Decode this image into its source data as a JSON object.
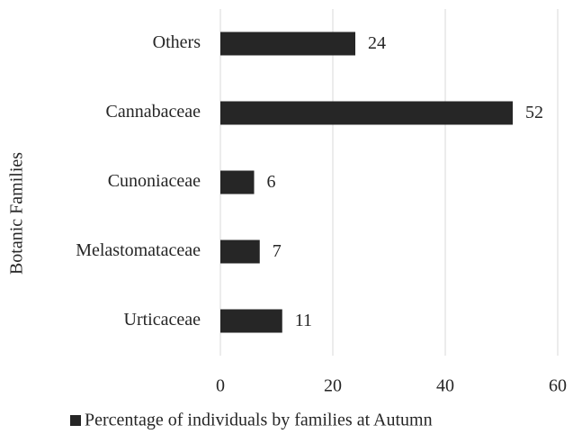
{
  "chart_data": {
    "type": "bar",
    "orientation": "horizontal",
    "ylabel": "Botanic Families",
    "categories": [
      "Others",
      "Cannabaceae",
      "Cunoniaceae",
      "Melastomataceae",
      "Urticaceae"
    ],
    "series": [
      {
        "name": "Percentage of individuals by families at Autumn",
        "color": "#262626",
        "values": [
          24,
          52,
          6,
          7,
          11
        ]
      }
    ],
    "xlim": [
      0,
      60
    ],
    "xticks": [
      0,
      20,
      40,
      60
    ],
    "grid": true,
    "legend": "bottom"
  }
}
